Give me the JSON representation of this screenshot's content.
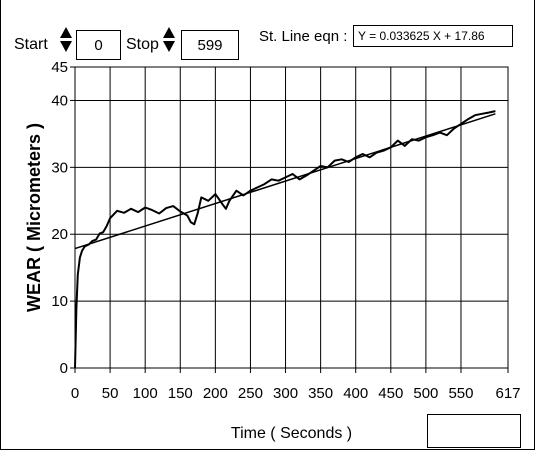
{
  "controls": {
    "start_label": "Start",
    "start_value": "0",
    "stop_label": "Stop",
    "stop_value": "599",
    "eqn_label": "St. Line eqn :",
    "eqn_value": "Y =  0.033625  X + 17.86"
  },
  "chart_data": {
    "type": "line",
    "xlabel": "Time ( Seconds )",
    "ylabel": "WEAR ( Micrometers )",
    "xlim": [
      0,
      617
    ],
    "ylim": [
      0,
      45
    ],
    "x_ticks": [
      0,
      50,
      100,
      150,
      200,
      250,
      300,
      350,
      400,
      450,
      500,
      550,
      617
    ],
    "y_ticks": [
      0,
      10,
      20,
      30,
      40,
      45
    ],
    "grid": true,
    "series": [
      {
        "kind": "measured",
        "x": [
          0,
          2,
          4,
          7,
          10,
          14,
          20,
          25,
          30,
          35,
          40,
          45,
          50,
          60,
          70,
          80,
          90,
          100,
          110,
          120,
          130,
          140,
          150,
          160,
          165,
          170,
          175,
          180,
          190,
          200,
          210,
          215,
          220,
          230,
          240,
          250,
          260,
          270,
          280,
          290,
          300,
          310,
          320,
          330,
          340,
          350,
          360,
          370,
          380,
          390,
          400,
          410,
          420,
          430,
          440,
          450,
          460,
          470,
          480,
          490,
          500,
          510,
          520,
          530,
          540,
          550,
          560,
          570,
          580,
          590,
          599
        ],
        "y": [
          0,
          9,
          14,
          16.5,
          17.5,
          18.2,
          18.5,
          19.0,
          19.2,
          20.1,
          20.3,
          21.2,
          22.4,
          23.5,
          23.2,
          23.8,
          23.3,
          24.0,
          23.6,
          23.1,
          23.9,
          24.2,
          23.4,
          22.8,
          21.8,
          21.5,
          23.2,
          25.5,
          25.0,
          26.0,
          24.5,
          23.8,
          25.0,
          26.5,
          25.8,
          26.5,
          27.0,
          27.5,
          28.2,
          28.0,
          28.5,
          29.0,
          28.2,
          28.8,
          29.5,
          30.2,
          30.0,
          31.0,
          31.2,
          30.8,
          31.5,
          32.0,
          31.5,
          32.2,
          32.5,
          33.0,
          34.0,
          33.2,
          34.2,
          34.0,
          34.5,
          34.8,
          35.2,
          34.8,
          35.8,
          36.5,
          37.2,
          37.8,
          38.0,
          38.2,
          38.4
        ]
      },
      {
        "kind": "fit",
        "slope": 0.033625,
        "intercept": 17.86,
        "x_range": [
          0,
          599
        ]
      }
    ]
  }
}
